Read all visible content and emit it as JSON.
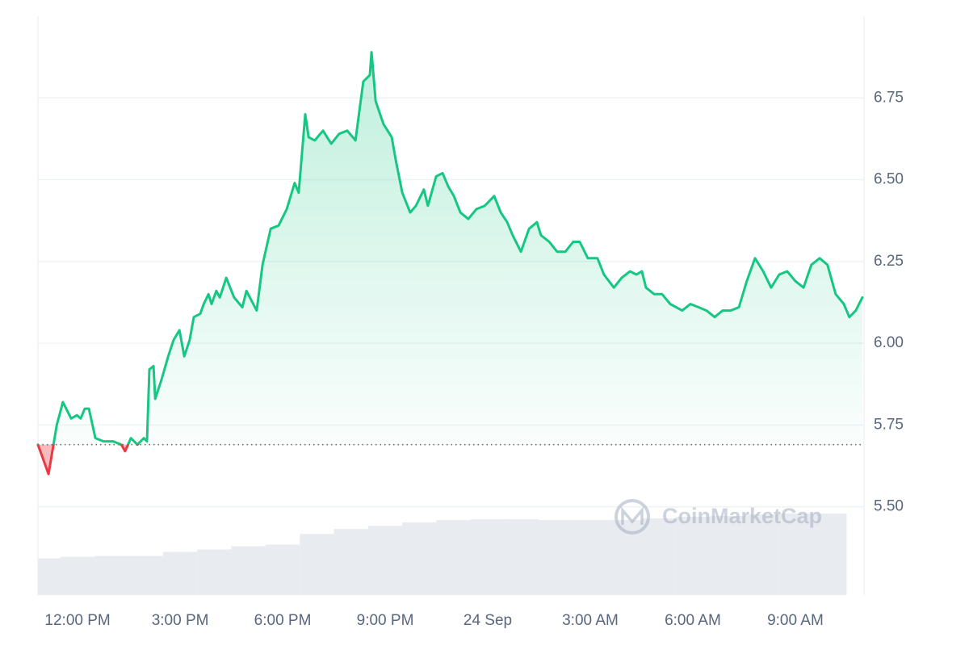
{
  "chart_data": {
    "type": "line",
    "color": "#16c784",
    "negative_color": "#ea3943",
    "baseline": 5.69,
    "x": [
      10.84,
      11.15,
      11.39,
      11.57,
      11.81,
      11.98,
      12.09,
      12.21,
      12.33,
      12.52,
      12.76,
      13.04,
      13.28,
      13.39,
      13.56,
      13.75,
      13.94,
      14.03,
      14.1,
      14.22,
      14.27,
      14.46,
      14.65,
      14.81,
      14.98,
      15.12,
      15.28,
      15.4,
      15.59,
      15.69,
      15.83,
      15.92,
      16.06,
      16.16,
      16.35,
      16.58,
      16.82,
      16.94,
      17.24,
      17.41,
      17.65,
      17.88,
      18.12,
      18.35,
      18.47,
      18.66,
      18.76,
      18.94,
      19.18,
      19.42,
      19.65,
      19.89,
      20.13,
      20.36,
      20.55,
      20.6,
      20.72,
      20.95,
      21.19,
      21.31,
      21.5,
      21.73,
      21.9,
      22.13,
      22.25,
      22.49,
      22.68,
      22.84,
      23.01,
      23.2,
      23.43,
      23.67,
      23.91,
      24.19,
      24.38,
      24.57,
      24.73,
      24.97,
      25.21,
      25.44,
      25.56,
      25.8,
      26.03,
      26.27,
      26.5,
      26.69,
      26.93,
      27.21,
      27.4,
      27.69,
      27.92,
      28.16,
      28.35,
      28.51,
      28.63,
      28.87,
      29.1,
      29.34,
      29.69,
      29.93,
      30.17,
      30.4,
      30.64,
      30.87,
      31.11,
      31.35,
      31.58,
      31.82,
      32.06,
      32.29,
      32.53,
      32.76,
      33.0,
      33.24,
      33.47,
      33.71,
      33.94,
      34.18,
      34.42,
      34.58,
      34.77,
      34.96
    ],
    "values": [
      5.69,
      5.6,
      5.75,
      5.82,
      5.77,
      5.78,
      5.77,
      5.8,
      5.8,
      5.71,
      5.7,
      5.7,
      5.69,
      5.67,
      5.71,
      5.69,
      5.71,
      5.7,
      5.92,
      5.93,
      5.83,
      5.89,
      5.96,
      6.01,
      6.04,
      5.96,
      6.01,
      6.08,
      6.09,
      6.12,
      6.15,
      6.12,
      6.16,
      6.14,
      6.2,
      6.14,
      6.11,
      6.16,
      6.1,
      6.24,
      6.35,
      6.36,
      6.41,
      6.49,
      6.46,
      6.7,
      6.63,
      6.62,
      6.65,
      6.61,
      6.64,
      6.65,
      6.62,
      6.8,
      6.82,
      6.89,
      6.74,
      6.67,
      6.63,
      6.56,
      6.46,
      6.4,
      6.42,
      6.47,
      6.42,
      6.51,
      6.52,
      6.48,
      6.45,
      6.4,
      6.38,
      6.41,
      6.42,
      6.45,
      6.4,
      6.37,
      6.33,
      6.28,
      6.35,
      6.37,
      6.33,
      6.31,
      6.28,
      6.28,
      6.31,
      6.31,
      6.26,
      6.26,
      6.21,
      6.17,
      6.2,
      6.22,
      6.21,
      6.22,
      6.17,
      6.15,
      6.15,
      6.12,
      6.1,
      6.12,
      6.11,
      6.1,
      6.08,
      6.1,
      6.1,
      6.11,
      6.19,
      6.26,
      6.22,
      6.17,
      6.21,
      6.22,
      6.19,
      6.17,
      6.24,
      6.26,
      6.24,
      6.15,
      6.12,
      6.08,
      6.1,
      6.14
    ],
    "xlim": [
      10.84,
      35.01
    ],
    "xticks": [
      {
        "value": 12,
        "label": "12:00 PM"
      },
      {
        "value": 15,
        "label": "3:00 PM"
      },
      {
        "value": 18,
        "label": "6:00 PM"
      },
      {
        "value": 21,
        "label": "9:00 PM"
      },
      {
        "value": 24,
        "label": "24 Sep"
      },
      {
        "value": 27,
        "label": "3:00 AM"
      },
      {
        "value": 30,
        "label": "6:00 AM"
      },
      {
        "value": 33,
        "label": "9:00 AM"
      }
    ],
    "ylim": [
      5.23,
      7.0
    ],
    "yticks": [
      {
        "value": 5.5,
        "label": "5.50"
      },
      {
        "value": 5.75,
        "label": "5.75"
      },
      {
        "value": 6.0,
        "label": "6.00"
      },
      {
        "value": 6.25,
        "label": "6.25"
      },
      {
        "value": 6.5,
        "label": "6.50"
      },
      {
        "value": 6.75,
        "label": "6.75"
      }
    ],
    "grid": true,
    "volume": {
      "color": "#e8ebef",
      "x": [
        11,
        12,
        13,
        14,
        15,
        16,
        17,
        18,
        19,
        20,
        21,
        22,
        23,
        24,
        25,
        26,
        27,
        28,
        29,
        30,
        31,
        32,
        33,
        34
      ],
      "values": [
        45,
        47,
        48,
        48,
        53,
        56,
        60,
        62,
        75,
        81,
        85,
        89,
        92,
        93,
        93,
        92,
        92,
        92,
        94,
        96,
        97,
        99,
        100,
        100
      ]
    },
    "watermark": "CoinMarketCap"
  }
}
